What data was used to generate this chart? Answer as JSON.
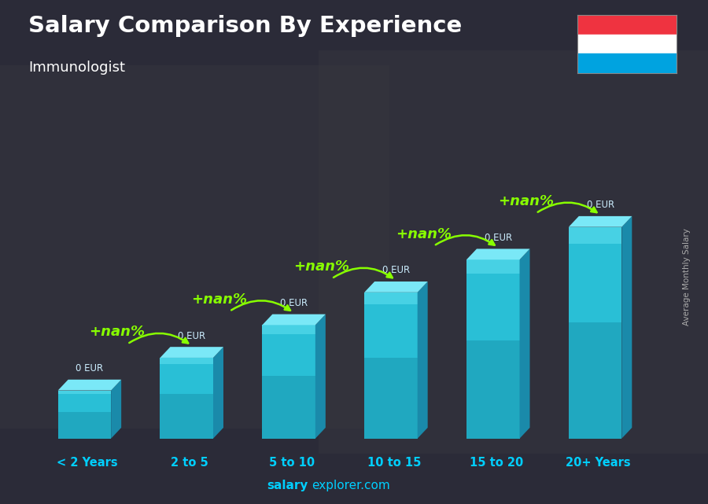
{
  "title": "Salary Comparison By Experience",
  "subtitle": "Immunologist",
  "categories": [
    "< 2 Years",
    "2 to 5",
    "5 to 10",
    "10 to 15",
    "15 to 20",
    "20+ Years"
  ],
  "values": [
    1,
    2,
    3,
    4,
    5,
    6
  ],
  "annotations": [
    "0 EUR",
    "0 EUR",
    "0 EUR",
    "0 EUR",
    "0 EUR",
    "0 EUR"
  ],
  "pct_labels": [
    "+nan%",
    "+nan%",
    "+nan%",
    "+nan%",
    "+nan%"
  ],
  "ylabel_rotated": "Average Monthly Salary",
  "footer_salary": "salary",
  "footer_rest": "explorer.com",
  "title_color": "#ffffff",
  "subtitle_color": "#ffffff",
  "bar_face_color": "#29bfd6",
  "bar_top_color": "#7ae8f7",
  "bar_side_color": "#1a8aaa",
  "bar_highlight_color": "#55ddee",
  "annotation_color": "#cceeff",
  "pct_color": "#88ff00",
  "xlabel_color": "#00cfff",
  "footer_bold_color": "#00cfff",
  "footer_norm_color": "#00cfff",
  "ylabel_color": "#aaaaaa",
  "bg_color": "#3a3a4a",
  "flag_red": "#EF3340",
  "flag_white": "#FFFFFF",
  "flag_blue": "#00A3E0"
}
